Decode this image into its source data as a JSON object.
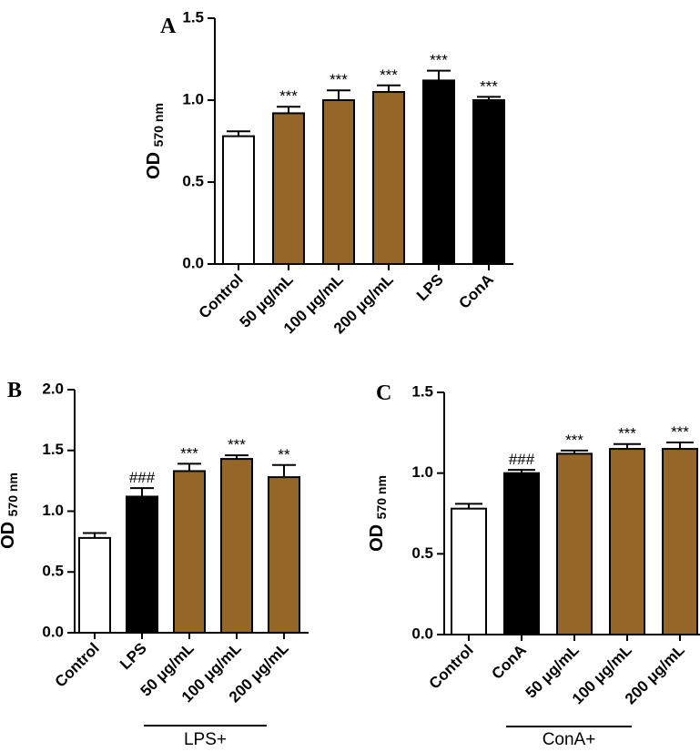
{
  "colors": {
    "white": "#ffffff",
    "black": "#000000",
    "brown": "#946728",
    "stroke": "#000000"
  },
  "chart_data": [
    {
      "panel": "A",
      "type": "bar",
      "ylabel": "OD",
      "ylabel_sub": "570 nm",
      "ylim": [
        0,
        1.5
      ],
      "yticks": [
        "0.0",
        "0.5",
        "1.0",
        "1.5"
      ],
      "categories": [
        "Control",
        "50 μg/mL",
        "100 μg/mL",
        "200 μg/mL",
        "LPS",
        "ConA"
      ],
      "values": [
        0.78,
        0.92,
        1.0,
        1.05,
        1.12,
        1.0
      ],
      "errors": [
        0.03,
        0.04,
        0.06,
        0.04,
        0.06,
        0.02
      ],
      "fills": [
        "white",
        "brown",
        "brown",
        "brown",
        "black",
        "black"
      ],
      "significance": [
        "",
        "***",
        "***",
        "***",
        "***",
        "***"
      ],
      "group_label": ""
    },
    {
      "panel": "B",
      "type": "bar",
      "ylabel": "OD",
      "ylabel_sub": "570 nm",
      "ylim": [
        0,
        2.0
      ],
      "yticks": [
        "0.0",
        "0.5",
        "1.0",
        "1.5",
        "2.0"
      ],
      "categories": [
        "Control",
        "LPS",
        "50 μg/mL",
        "100 μg/mL",
        "200 μg/mL"
      ],
      "values": [
        0.78,
        1.12,
        1.33,
        1.43,
        1.28
      ],
      "errors": [
        0.04,
        0.07,
        0.06,
        0.03,
        0.1
      ],
      "fills": [
        "white",
        "black",
        "brown",
        "brown",
        "brown"
      ],
      "significance": [
        "",
        "###",
        "***",
        "***",
        "**"
      ],
      "group_label": "LPS+"
    },
    {
      "panel": "C",
      "type": "bar",
      "ylabel": "OD",
      "ylabel_sub": "570 nm",
      "ylim": [
        0,
        1.5
      ],
      "yticks": [
        "0.0",
        "0.5",
        "1.0",
        "1.5"
      ],
      "categories": [
        "Control",
        "ConA",
        "50 μg/mL",
        "100 μg/mL",
        "200 μg/mL"
      ],
      "values": [
        0.78,
        1.0,
        1.12,
        1.15,
        1.15
      ],
      "errors": [
        0.03,
        0.02,
        0.02,
        0.03,
        0.04
      ],
      "fills": [
        "white",
        "black",
        "brown",
        "brown",
        "brown"
      ],
      "significance": [
        "",
        "###",
        "***",
        "***",
        "***"
      ],
      "group_label": "ConA+"
    }
  ]
}
